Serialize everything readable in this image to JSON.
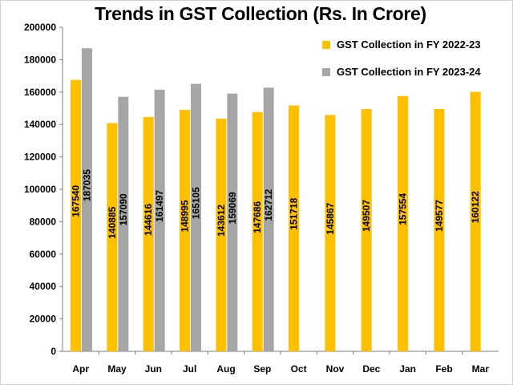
{
  "chart_data": {
    "type": "bar",
    "title": "Trends in GST Collection (Rs. In Crore)",
    "xlabel": "",
    "ylabel": "",
    "ylim": [
      0,
      200000
    ],
    "yticks": [
      "0",
      "20000",
      "40000",
      "60000",
      "80000",
      "100000",
      "120000",
      "140000",
      "160000",
      "180000",
      "200000"
    ],
    "grid": false,
    "legend_position": "top-right",
    "categories": [
      "Apr",
      "May",
      "Jun",
      "Jul",
      "Aug",
      "Sep",
      "Oct",
      "Nov",
      "Dec",
      "Jan",
      "Feb",
      "Mar"
    ],
    "series": [
      {
        "name": "GST Collection in FY 2022-23",
        "color": "#ffc000",
        "values": [
          167540,
          140885,
          144616,
          148995,
          143612,
          147686,
          151718,
          145867,
          149507,
          157554,
          149577,
          160122
        ]
      },
      {
        "name": "GST Collection in FY 2023-24",
        "color": "#a6a6a6",
        "values": [
          187035,
          157090,
          161497,
          165105,
          159069,
          162712,
          null,
          null,
          null,
          null,
          null,
          null
        ]
      }
    ]
  }
}
